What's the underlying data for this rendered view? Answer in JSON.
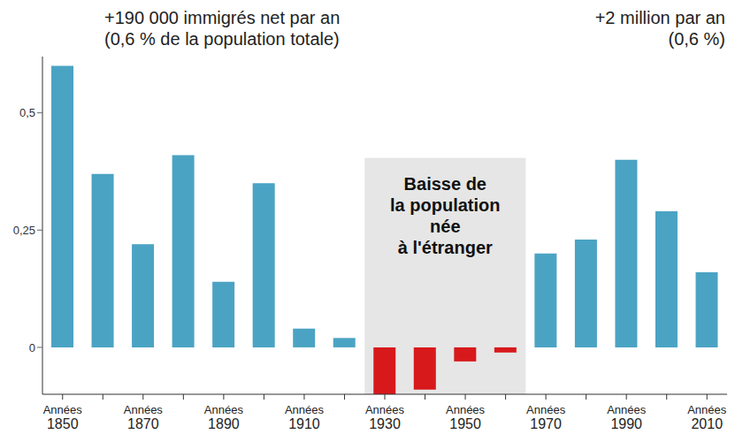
{
  "chart_data": {
    "type": "bar",
    "annotation_left": [
      "+190 000 immigrés net par an",
      "(0,6 % de la population totale)"
    ],
    "annotation_right": [
      "+2 million par an",
      "(0,6 %)"
    ],
    "highlight_label": [
      "Baisse de",
      "la population",
      "née",
      "à l'étranger"
    ],
    "categories": [
      "Années 1850",
      null,
      "Années 1870",
      null,
      "Années 1890",
      null,
      "Années 1910",
      null,
      "Années 1930",
      null,
      "Années 1950",
      null,
      "Années 1970",
      null,
      "Années 1990",
      null,
      "Années 2010"
    ],
    "values": [
      0.6,
      0.37,
      0.22,
      0.41,
      0.14,
      0.35,
      0.04,
      0.02,
      -0.1,
      -0.09,
      -0.03,
      -0.011,
      0.2,
      0.23,
      0.4,
      0.29,
      0.16
    ],
    "colors": [
      "#4ba3c3",
      "#4ba3c3",
      "#4ba3c3",
      "#4ba3c3",
      "#4ba3c3",
      "#4ba3c3",
      "#4ba3c3",
      "#4ba3c3",
      "#d7191c",
      "#d7191c",
      "#d7191c",
      "#d7191c",
      "#4ba3c3",
      "#4ba3c3",
      "#4ba3c3",
      "#4ba3c3",
      "#4ba3c3"
    ],
    "ylim": [
      -0.1,
      0.62
    ],
    "yticks": [
      0,
      {
        "value": 0.25,
        "label": "0,25"
      },
      {
        "value": 0.5,
        "label": "0,5"
      }
    ],
    "grid": false
  }
}
